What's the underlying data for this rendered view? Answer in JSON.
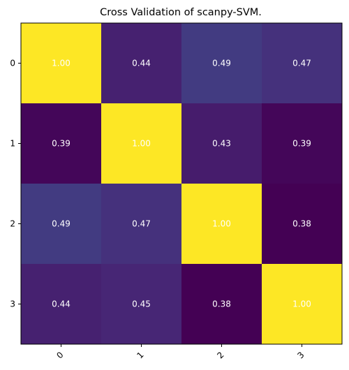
{
  "chart_data": {
    "type": "heatmap",
    "title": "Cross Validation of scanpy-SVM.",
    "x_tick_labels": [
      "0",
      "1",
      "2",
      "3"
    ],
    "y_tick_labels": [
      "0",
      "1",
      "2",
      "3"
    ],
    "values": [
      [
        1.0,
        0.44,
        0.49,
        0.47
      ],
      [
        0.39,
        1.0,
        0.43,
        0.39
      ],
      [
        0.49,
        0.47,
        1.0,
        0.38
      ],
      [
        0.44,
        0.45,
        0.38,
        1.0
      ]
    ],
    "colormap": "viridis",
    "x_tick_rotation_deg": 45,
    "annotation_color": "#ffffff",
    "grid": false
  }
}
